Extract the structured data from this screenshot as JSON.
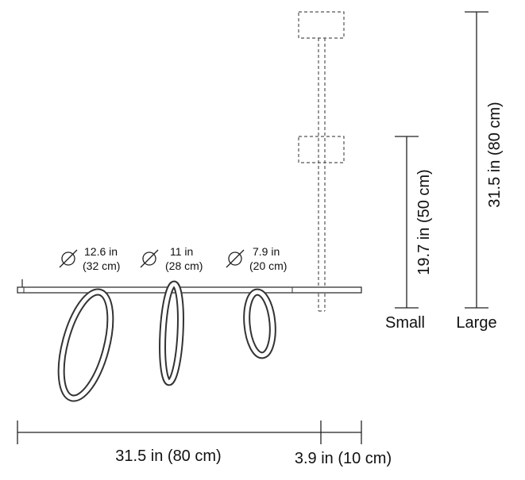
{
  "rings": [
    {
      "diameter_in": "12.6 in",
      "diameter_cm": "(32 cm)"
    },
    {
      "diameter_in": "11 in",
      "diameter_cm": "(28 cm)"
    },
    {
      "diameter_in": "7.9 in",
      "diameter_cm": "(20 cm)"
    }
  ],
  "heights": {
    "small": {
      "dimension": "19.7 in (50 cm)",
      "label": "Small"
    },
    "large": {
      "dimension": "31.5 in (80 cm)",
      "label": "Large"
    }
  },
  "widths": {
    "body": "31.5 in (80 cm)",
    "extension": "3.9 in (10 cm)"
  }
}
